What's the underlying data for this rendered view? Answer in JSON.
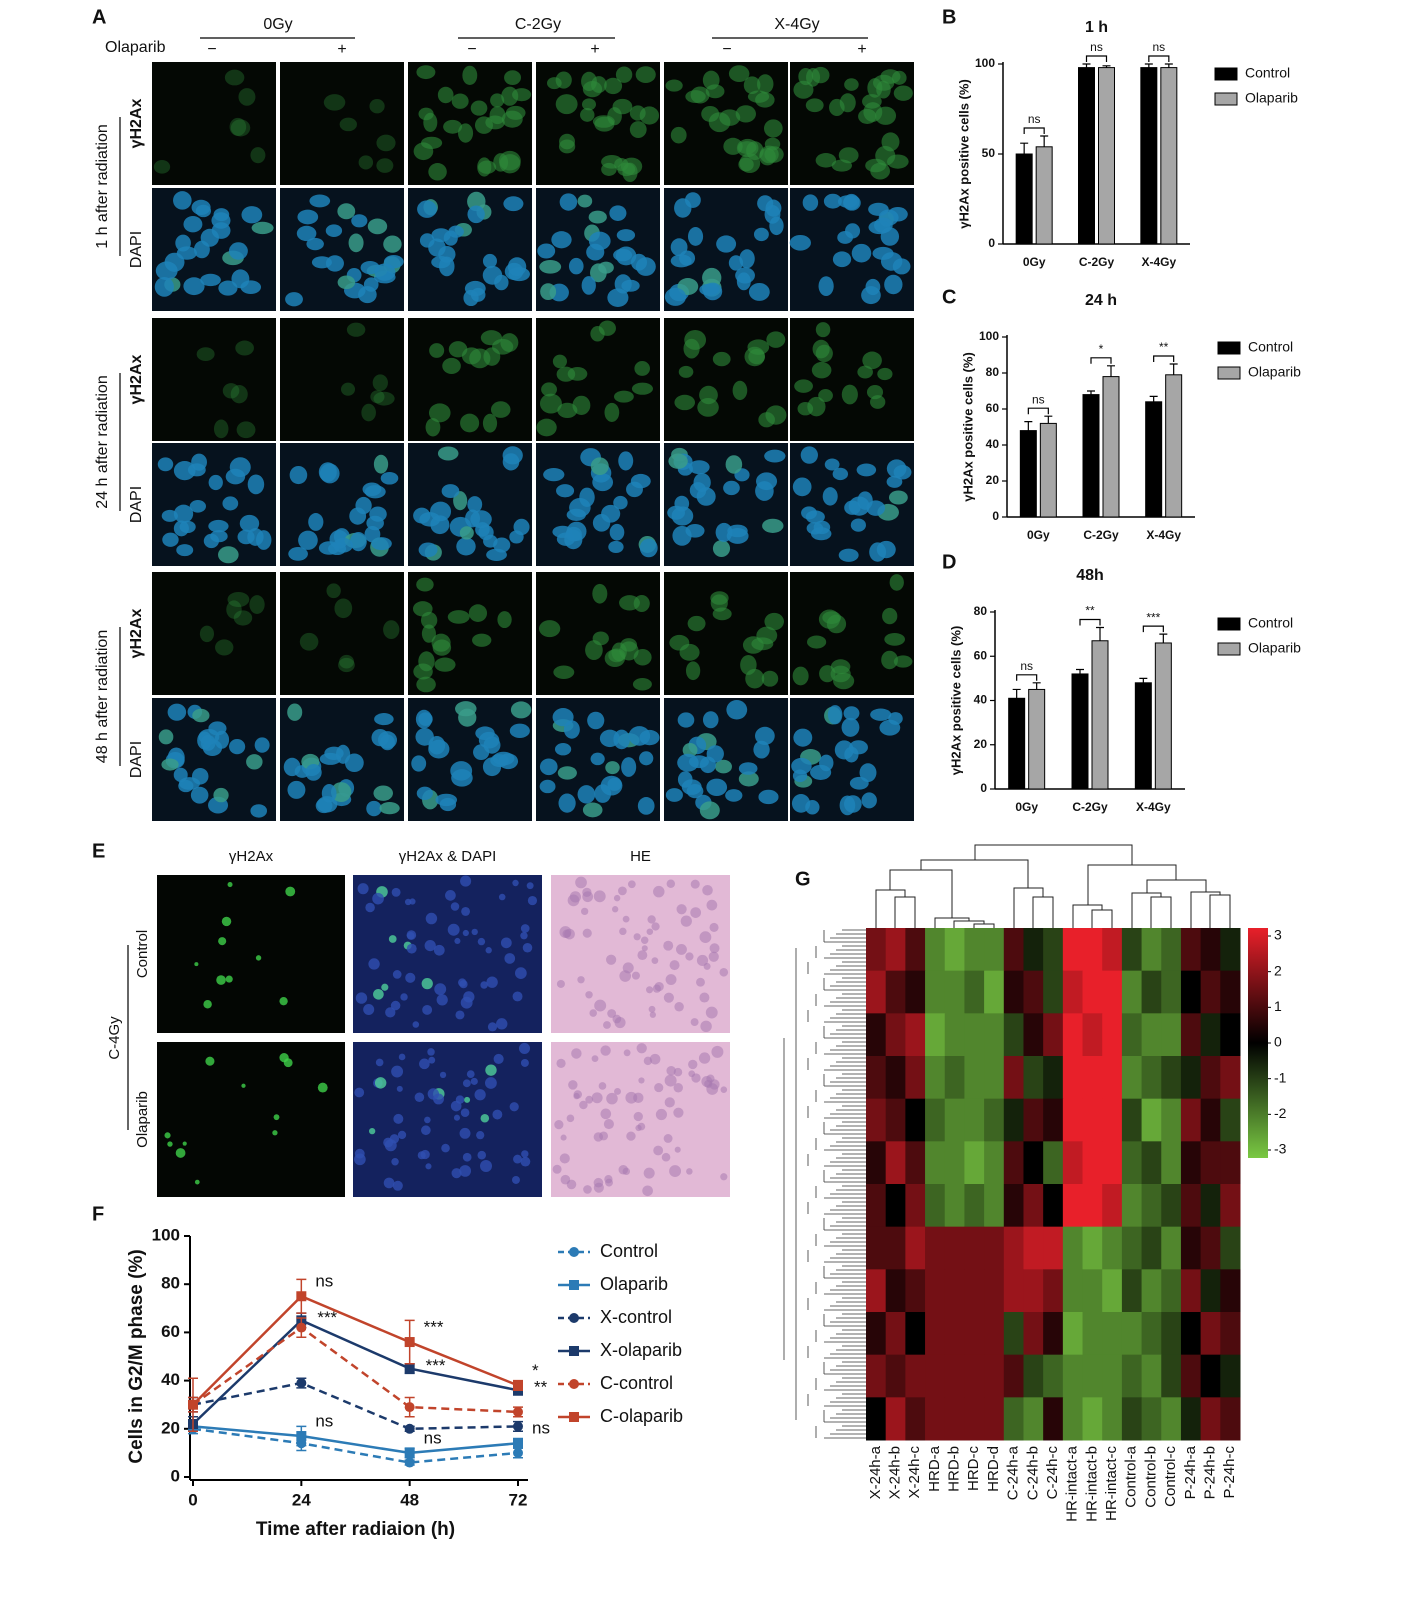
{
  "figure": {
    "panel_a": {
      "label": "A",
      "doses": [
        "0Gy",
        "C-2Gy",
        "X-4Gy"
      ],
      "drug_label": "Olaparib",
      "signs": [
        "−",
        "+"
      ],
      "time_labels": [
        "1 h after radiation",
        "24 h after radiation",
        "48 h after radiation"
      ],
      "stain_labels": [
        "γH2Ax",
        "DAPI"
      ]
    },
    "panel_e": {
      "label": "E",
      "columns": [
        "γH2Ax",
        "γH2Ax & DAPI",
        "HE"
      ],
      "group_label": "C-4Gy",
      "rows": [
        "Control",
        "Olaparib"
      ]
    }
  },
  "chart_data": [
    {
      "type": "bar",
      "label": "B",
      "title": "1 h",
      "ylabel": "γH2Ax positive cells (%)",
      "categories": [
        "0Gy",
        "C-2Gy",
        "X-4Gy"
      ],
      "series": [
        {
          "name": "Control",
          "color": "#000000",
          "values": [
            50,
            98,
            98
          ],
          "errors": [
            6,
            2,
            2
          ]
        },
        {
          "name": "Olaparib",
          "color": "#a6a6a6",
          "values": [
            54,
            98,
            98
          ],
          "errors": [
            6,
            1,
            2
          ]
        }
      ],
      "significance": [
        "ns",
        "ns",
        "ns"
      ],
      "ylim": [
        0,
        100
      ],
      "yticks": [
        0,
        50,
        100
      ],
      "legend": "right"
    },
    {
      "type": "bar",
      "label": "C",
      "title": "24 h",
      "ylabel": "γH2Ax positive cells (%)",
      "categories": [
        "0Gy",
        "C-2Gy",
        "X-4Gy"
      ],
      "series": [
        {
          "name": "Control",
          "color": "#000000",
          "values": [
            48,
            68,
            64
          ],
          "errors": [
            5,
            2,
            3
          ]
        },
        {
          "name": "Olaparib",
          "color": "#a6a6a6",
          "values": [
            52,
            78,
            79
          ],
          "errors": [
            4,
            6,
            6
          ]
        }
      ],
      "significance": [
        "ns",
        "*",
        "**"
      ],
      "ylim": [
        0,
        100
      ],
      "yticks": [
        0,
        20,
        40,
        60,
        80,
        100
      ],
      "legend": "right"
    },
    {
      "type": "bar",
      "label": "D",
      "title": "48h",
      "ylabel": "γH2Ax positive cells (%)",
      "categories": [
        "0Gy",
        "C-2Gy",
        "X-4Gy"
      ],
      "series": [
        {
          "name": "Control",
          "color": "#000000",
          "values": [
            41,
            52,
            48
          ],
          "errors": [
            4,
            2,
            2
          ]
        },
        {
          "name": "Olaparib",
          "color": "#a6a6a6",
          "values": [
            45,
            67,
            66
          ],
          "errors": [
            3,
            6,
            4
          ]
        }
      ],
      "significance": [
        "ns",
        "**",
        "***"
      ],
      "ylim": [
        0,
        80
      ],
      "yticks": [
        0,
        20,
        40,
        60,
        80
      ],
      "legend": "right"
    },
    {
      "type": "line",
      "label": "F",
      "xlabel": "Time after radiaion (h)",
      "ylabel": "Cells in G2/M phase (%)",
      "x": [
        0,
        24,
        48,
        72
      ],
      "xlim": [
        0,
        72
      ],
      "xticks": [
        0,
        24,
        48,
        72
      ],
      "ylim": [
        0,
        100
      ],
      "yticks": [
        0,
        20,
        40,
        60,
        80,
        100
      ],
      "legend": "right",
      "series": [
        {
          "name": "Control",
          "color": "#2c7bb6",
          "dashed": true,
          "marker": "circle",
          "values": [
            20,
            14,
            6,
            10
          ],
          "errors": [
            2,
            3,
            1,
            2
          ]
        },
        {
          "name": "Olaparib",
          "color": "#2c7bb6",
          "dashed": false,
          "marker": "square",
          "values": [
            21,
            17,
            10,
            14
          ],
          "errors": [
            2,
            4,
            2,
            2
          ],
          "annotations": [
            null,
            "ns",
            "ns",
            "ns"
          ]
        },
        {
          "name": "X-control",
          "color": "#1c3a6b",
          "dashed": true,
          "marker": "circle",
          "values": [
            30,
            39,
            20,
            21
          ],
          "errors": [
            3,
            2,
            1,
            2
          ]
        },
        {
          "name": "X-olaparib",
          "color": "#1c3a6b",
          "dashed": false,
          "marker": "square",
          "values": [
            22,
            65,
            45,
            36
          ],
          "errors": [
            3,
            3,
            2,
            2
          ],
          "annotations": [
            null,
            "***",
            "***",
            "**"
          ]
        },
        {
          "name": "C-control",
          "color": "#c1442b",
          "dashed": true,
          "marker": "circle",
          "values": [
            30,
            62,
            29,
            27
          ],
          "errors": [
            3,
            4,
            4,
            2
          ]
        },
        {
          "name": "C-olaparib",
          "color": "#c1442b",
          "dashed": false,
          "marker": "square",
          "values": [
            30,
            75,
            56,
            38
          ],
          "errors": [
            11,
            7,
            9,
            2
          ],
          "annotations": [
            null,
            "ns",
            "***",
            "*"
          ]
        }
      ]
    },
    {
      "type": "heatmap",
      "label": "G",
      "categories": [
        "X-24h-a",
        "X-24h-b",
        "X-24h-c",
        "HRD-a",
        "HRD-b",
        "HRD-c",
        "HRD-d",
        "C-24h-a",
        "C-24h-b",
        "C-24h-c",
        "HR-intact-a",
        "HR-intact-b",
        "HR-intact-c",
        "Control-a",
        "Control-b",
        "Control-c",
        "P-24h-a",
        "P-24h-b",
        "P-24h-c"
      ],
      "colors": [
        "#7ac943",
        "#000000",
        "#e8202a"
      ],
      "zlim": [
        -3,
        3
      ],
      "colorbar_ticks": [
        3,
        2,
        1,
        0,
        -1,
        -2,
        -3
      ],
      "values": [
        [
          1.5,
          2,
          1,
          -2,
          -2.5,
          -2,
          -2,
          1,
          -0.5,
          -1,
          3,
          3,
          2.5,
          -1,
          -2,
          -1.5,
          1,
          0.5,
          -0.5
        ],
        [
          2,
          1,
          0.5,
          -2,
          -2,
          -1.5,
          -2.5,
          0.5,
          1,
          -1,
          2.5,
          3,
          3,
          -2,
          -1,
          -1.5,
          0,
          1,
          0.5
        ],
        [
          0.5,
          1.5,
          2,
          -2.5,
          -2,
          -2,
          -2,
          -1,
          0.5,
          1.5,
          3,
          2.5,
          3,
          -1.5,
          -2,
          -2,
          1,
          -0.5,
          0
        ],
        [
          1,
          0.5,
          1.5,
          -2,
          -1.5,
          -2,
          -2,
          1.5,
          -1,
          -0.5,
          3,
          3,
          3,
          -2,
          -1.5,
          -1,
          -0.5,
          1,
          1.5
        ],
        [
          1.5,
          1,
          0,
          -1.5,
          -2,
          -2,
          -1.5,
          -0.5,
          1,
          0.5,
          3,
          3,
          3,
          -1,
          -2.5,
          -2,
          1.5,
          0.5,
          -1
        ],
        [
          0.5,
          2,
          1,
          -2,
          -2,
          -2.5,
          -2,
          1,
          0,
          -1.5,
          2.5,
          3,
          3,
          -1.5,
          -1,
          -2,
          0.5,
          1,
          1
        ],
        [
          1,
          0,
          1.5,
          -1.5,
          -2,
          -1.5,
          -2,
          0.5,
          1.5,
          0,
          3,
          3,
          2.5,
          -2,
          -1.5,
          -1,
          1,
          -0.5,
          1.5
        ],
        [
          1,
          1,
          2,
          1.5,
          1.5,
          1.5,
          1.5,
          2,
          2.5,
          2.5,
          -2,
          -2.5,
          -2,
          -1.5,
          -1,
          -2,
          0.5,
          1,
          -1
        ],
        [
          2,
          0.5,
          1,
          1.5,
          1.5,
          1.5,
          1.5,
          2,
          2,
          1.5,
          -2,
          -2,
          -2.5,
          -1,
          -2,
          -1.5,
          1.5,
          -0.5,
          0.5
        ],
        [
          0.5,
          1.5,
          0,
          1.5,
          1.5,
          1.5,
          1.5,
          -1,
          1.5,
          0.5,
          -2.5,
          -2,
          -2,
          -2,
          -1.5,
          -1,
          0,
          1.5,
          1
        ],
        [
          1.5,
          1,
          1.5,
          1.5,
          1.5,
          1.5,
          1.5,
          1,
          -1,
          -1.5,
          -2,
          -2,
          -2,
          -1.5,
          -2,
          -1,
          1,
          0,
          -0.5
        ],
        [
          0,
          2,
          1,
          1.5,
          1.5,
          1.5,
          1.5,
          -1.5,
          -2,
          0.5,
          -2,
          -2.5,
          -2,
          -1,
          -1.5,
          -2,
          -0.5,
          1.5,
          1
        ]
      ]
    }
  ]
}
